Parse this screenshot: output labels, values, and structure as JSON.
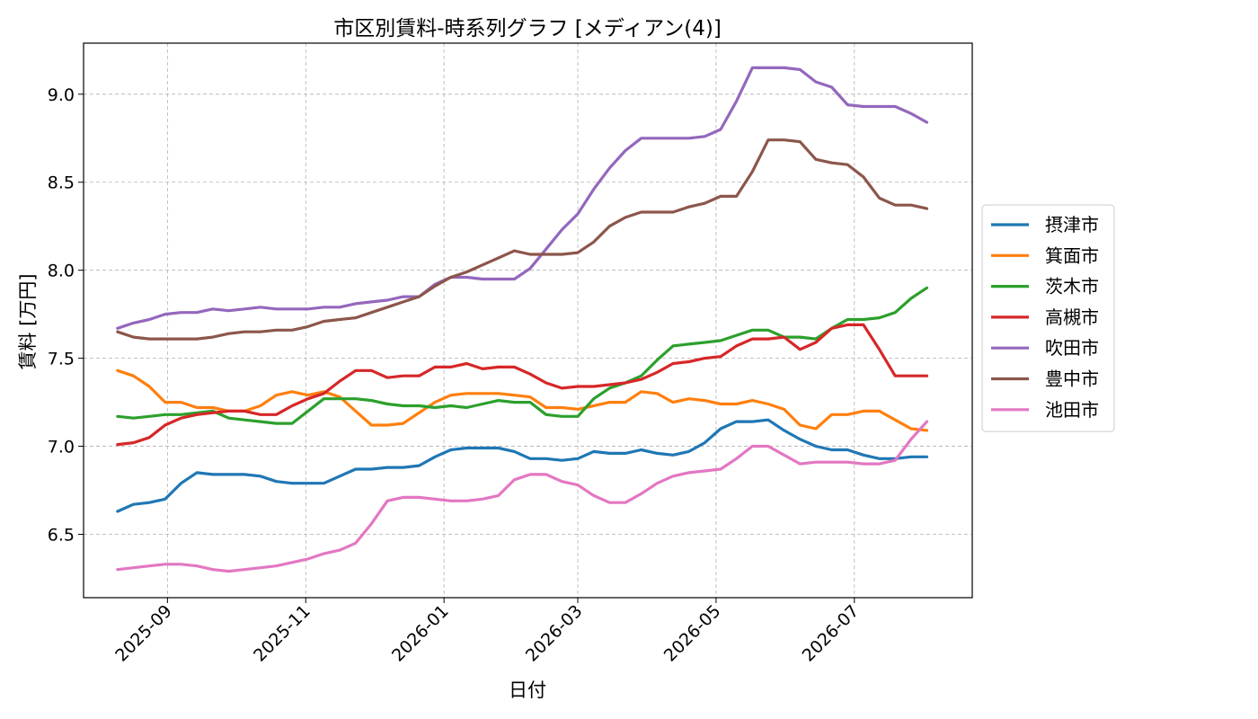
{
  "chart_data": {
    "type": "line",
    "title": "市区別賃料-時系列グラフ [メディアン(4)]",
    "xlabel": "日付",
    "ylabel": "賃料 [万円]",
    "ylim": [
      6.14,
      9.29
    ],
    "xlim": [
      "2025-07-26",
      "2026-08-22"
    ],
    "x_ticks": [
      "2025-09",
      "2025-11",
      "2026-01",
      "2026-03",
      "2026-05",
      "2026-07"
    ],
    "y_ticks": [
      "6.5",
      "7.0",
      "7.5",
      "8.0",
      "8.5",
      "9.0"
    ],
    "grid": true,
    "legend_position": "center-right",
    "start_date": "2025-08-10",
    "step_days": 7,
    "series": [
      {
        "name": "摂津市",
        "color": "#1f77b4",
        "values": [
          6.63,
          6.67,
          6.68,
          6.7,
          6.79,
          6.85,
          6.84,
          6.84,
          6.84,
          6.83,
          6.8,
          6.79,
          6.79,
          6.79,
          6.83,
          6.87,
          6.87,
          6.88,
          6.88,
          6.89,
          6.94,
          6.98,
          6.99,
          6.99,
          6.99,
          6.97,
          6.93,
          6.93,
          6.92,
          6.93,
          6.97,
          6.96,
          6.96,
          6.98,
          6.96,
          6.95,
          6.97,
          7.02,
          7.1,
          7.14,
          7.14,
          7.15,
          7.09,
          7.04,
          7.0,
          6.98,
          6.98,
          6.95,
          6.93,
          6.93,
          6.94,
          6.94
        ]
      },
      {
        "name": "箕面市",
        "color": "#ff7f0e",
        "values": [
          7.43,
          7.4,
          7.34,
          7.25,
          7.25,
          7.22,
          7.22,
          7.2,
          7.2,
          7.23,
          7.29,
          7.31,
          7.29,
          7.31,
          7.28,
          7.2,
          7.12,
          7.12,
          7.13,
          7.19,
          7.25,
          7.29,
          7.3,
          7.3,
          7.3,
          7.29,
          7.28,
          7.22,
          7.22,
          7.21,
          7.23,
          7.25,
          7.25,
          7.31,
          7.3,
          7.25,
          7.27,
          7.26,
          7.24,
          7.24,
          7.26,
          7.24,
          7.21,
          7.12,
          7.1,
          7.18,
          7.18,
          7.2,
          7.2,
          7.15,
          7.1,
          7.09
        ]
      },
      {
        "name": "茨木市",
        "color": "#2ca02c",
        "values": [
          7.17,
          7.16,
          7.17,
          7.18,
          7.18,
          7.19,
          7.2,
          7.16,
          7.15,
          7.14,
          7.13,
          7.13,
          7.2,
          7.27,
          7.27,
          7.27,
          7.26,
          7.24,
          7.23,
          7.23,
          7.22,
          7.23,
          7.22,
          7.24,
          7.26,
          7.25,
          7.25,
          7.18,
          7.17,
          7.17,
          7.27,
          7.33,
          7.36,
          7.4,
          7.49,
          7.57,
          7.58,
          7.59,
          7.6,
          7.63,
          7.66,
          7.66,
          7.62,
          7.62,
          7.61,
          7.67,
          7.72,
          7.72,
          7.73,
          7.76,
          7.84,
          7.9
        ]
      },
      {
        "name": "高槻市",
        "color": "#d62728",
        "values": [
          7.01,
          7.02,
          7.05,
          7.12,
          7.16,
          7.18,
          7.19,
          7.2,
          7.2,
          7.18,
          7.18,
          7.23,
          7.27,
          7.3,
          7.37,
          7.43,
          7.43,
          7.39,
          7.4,
          7.4,
          7.45,
          7.45,
          7.47,
          7.44,
          7.45,
          7.45,
          7.41,
          7.36,
          7.33,
          7.34,
          7.34,
          7.35,
          7.36,
          7.38,
          7.42,
          7.47,
          7.48,
          7.5,
          7.51,
          7.57,
          7.61,
          7.61,
          7.62,
          7.55,
          7.59,
          7.67,
          7.69,
          7.69,
          7.55,
          7.4,
          7.4,
          7.4
        ]
      },
      {
        "name": "吹田市",
        "color": "#9467bd",
        "values": [
          7.67,
          7.7,
          7.72,
          7.75,
          7.76,
          7.76,
          7.78,
          7.77,
          7.78,
          7.79,
          7.78,
          7.78,
          7.78,
          7.79,
          7.79,
          7.81,
          7.82,
          7.83,
          7.85,
          7.85,
          7.92,
          7.96,
          7.96,
          7.95,
          7.95,
          7.95,
          8.01,
          8.12,
          8.23,
          8.32,
          8.46,
          8.58,
          8.68,
          8.75,
          8.75,
          8.75,
          8.75,
          8.76,
          8.8,
          8.96,
          9.15,
          9.15,
          9.15,
          9.14,
          9.07,
          9.04,
          8.94,
          8.93,
          8.93,
          8.93,
          8.89,
          8.84
        ]
      },
      {
        "name": "豊中市",
        "color": "#8c564b",
        "values": [
          7.65,
          7.62,
          7.61,
          7.61,
          7.61,
          7.61,
          7.62,
          7.64,
          7.65,
          7.65,
          7.66,
          7.66,
          7.68,
          7.71,
          7.72,
          7.73,
          7.76,
          7.79,
          7.82,
          7.85,
          7.91,
          7.96,
          7.99,
          8.03,
          8.07,
          8.11,
          8.09,
          8.09,
          8.09,
          8.1,
          8.16,
          8.25,
          8.3,
          8.33,
          8.33,
          8.33,
          8.36,
          8.38,
          8.42,
          8.42,
          8.56,
          8.74,
          8.74,
          8.73,
          8.63,
          8.61,
          8.6,
          8.53,
          8.41,
          8.37,
          8.37,
          8.35
        ]
      },
      {
        "name": "池田市",
        "color": "#e377c2",
        "values": [
          6.3,
          6.31,
          6.32,
          6.33,
          6.33,
          6.32,
          6.3,
          6.29,
          6.3,
          6.31,
          6.32,
          6.34,
          6.36,
          6.39,
          6.41,
          6.45,
          6.56,
          6.69,
          6.71,
          6.71,
          6.7,
          6.69,
          6.69,
          6.7,
          6.72,
          6.81,
          6.84,
          6.84,
          6.8,
          6.78,
          6.72,
          6.68,
          6.68,
          6.73,
          6.79,
          6.83,
          6.85,
          6.86,
          6.87,
          6.93,
          7.0,
          7.0,
          6.95,
          6.9,
          6.91,
          6.91,
          6.91,
          6.9,
          6.9,
          6.92,
          7.04,
          7.14
        ]
      }
    ]
  }
}
